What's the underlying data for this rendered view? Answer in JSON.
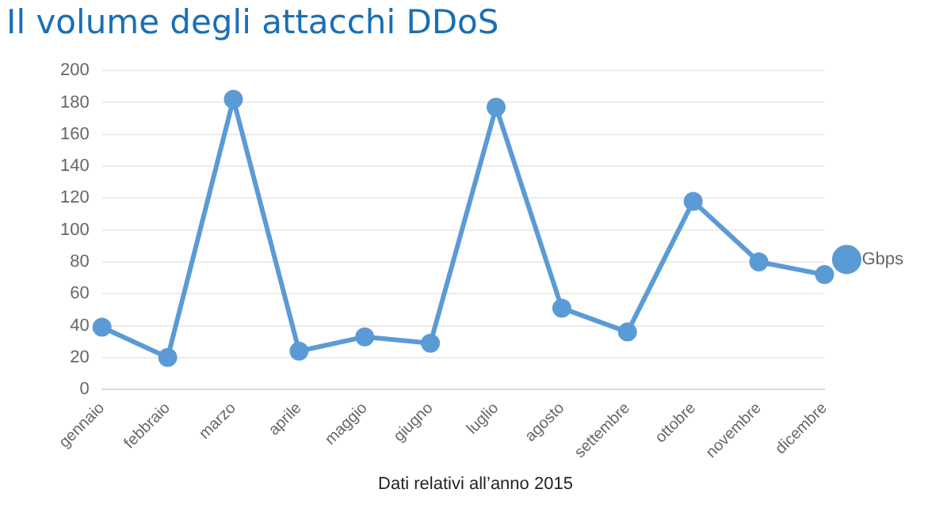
{
  "chart_data": {
    "type": "line",
    "title": "Il volume degli attacchi DDoS",
    "categories": [
      "gennaio",
      "febbraio",
      "marzo",
      "aprile",
      "maggio",
      "giugno",
      "luglio",
      "agosto",
      "settembre",
      "ottobre",
      "novembre",
      "dicembre"
    ],
    "series": [
      {
        "name": "Gbps",
        "color": "#5b9bd5",
        "values": [
          39,
          20,
          182,
          24,
          33,
          29,
          177,
          51,
          36,
          118,
          80,
          72
        ]
      }
    ],
    "ylim": [
      0,
      200
    ],
    "yticks": [
      0,
      20,
      40,
      60,
      80,
      100,
      120,
      140,
      160,
      180,
      200
    ],
    "grid": "y",
    "legend": "right",
    "marker": "circle",
    "line_style": "solid",
    "annotations": [
      "Dati relativi all’anno 2015"
    ]
  }
}
